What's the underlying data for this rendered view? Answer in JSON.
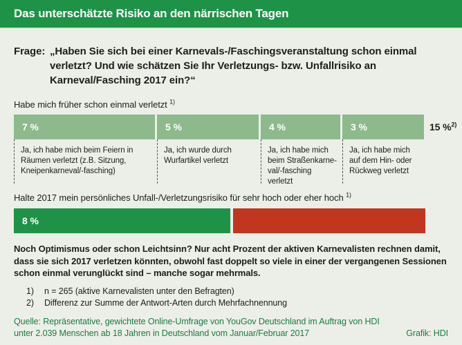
{
  "header": {
    "title": "Das unterschätzte Risiko an den närrischen Tagen"
  },
  "question": {
    "label": "Frage:",
    "text": "„Haben Sie sich bei einer Karnevals-/Faschingsveranstaltung schon einmal verletzt? Und wie schätzen Sie Ihr Verletzungs- bzw. Unfallrisiko an Karneval/Fasching 2017 ein?“"
  },
  "chart_data": [
    {
      "type": "bar",
      "title": "Habe mich früher schon einmal verletzt",
      "title_footnote": "1)",
      "orientation": "horizontal-stacked",
      "categories": [
        "Ja, ich habe mich beim Feiern in Räumen verletzt (z.B. Sitzung, Kneipenkarneval/-fasching)",
        "Ja, ich wurde durch Wurfartikel verletzt",
        "Ja, ich habe mich beim Straßenkarne­val/-fasching verletzt",
        "Ja, ich habe mich auf dem Hin- oder Rückweg verletzt"
      ],
      "values": [
        7,
        5,
        4,
        3
      ],
      "value_labels": [
        "7 %",
        "5 %",
        "4 %",
        "3 %"
      ],
      "total_label": "15 %",
      "total_footnote": "2)",
      "bar_color": "#8db98c"
    },
    {
      "type": "bar",
      "title": "Halte 2017 mein persönliches Unfall-/Verletzungsrisiko für sehr hoch oder eher hoch",
      "title_footnote": "1)",
      "orientation": "horizontal-stacked",
      "values": [
        8
      ],
      "value_labels": [
        "8 %"
      ],
      "bar_color": "#1e9247",
      "remainder_color": "#c1361f"
    }
  ],
  "commentary": "Noch Optimismus oder schon Leichtsinn? Nur acht Prozent der aktiven Karnevalisten rechnen damit, dass sie sich 2017 verletzen könnten, obwohl fast doppelt so viele in einer der vergangenen Sessionen schon einmal verunglückt sind – manche sogar mehrmals.",
  "footnotes": [
    {
      "num": "1)",
      "text": "n = 265 (aktive Karnevalisten unter den Befragten)"
    },
    {
      "num": "2)",
      "text": "Differenz zur Summe der Antwort-Arten durch Mehrfachnennung"
    }
  ],
  "source": {
    "text": "Quelle: Repräsentative, gewichtete Online-Umfrage von YouGov Deutschland im Auftrag von HDI unter 2.039 Menschen ab 18 Jahren in Deutschland vom Januar/Februar 2017",
    "credit": "Grafik: HDI"
  },
  "colors": {
    "header_green": "#1e9247",
    "pale_line": "#d2e9d2",
    "background": "#ecefe8",
    "bar_light_green": "#8db98c",
    "risk_red": "#c1361f",
    "source_green": "#187c40"
  }
}
